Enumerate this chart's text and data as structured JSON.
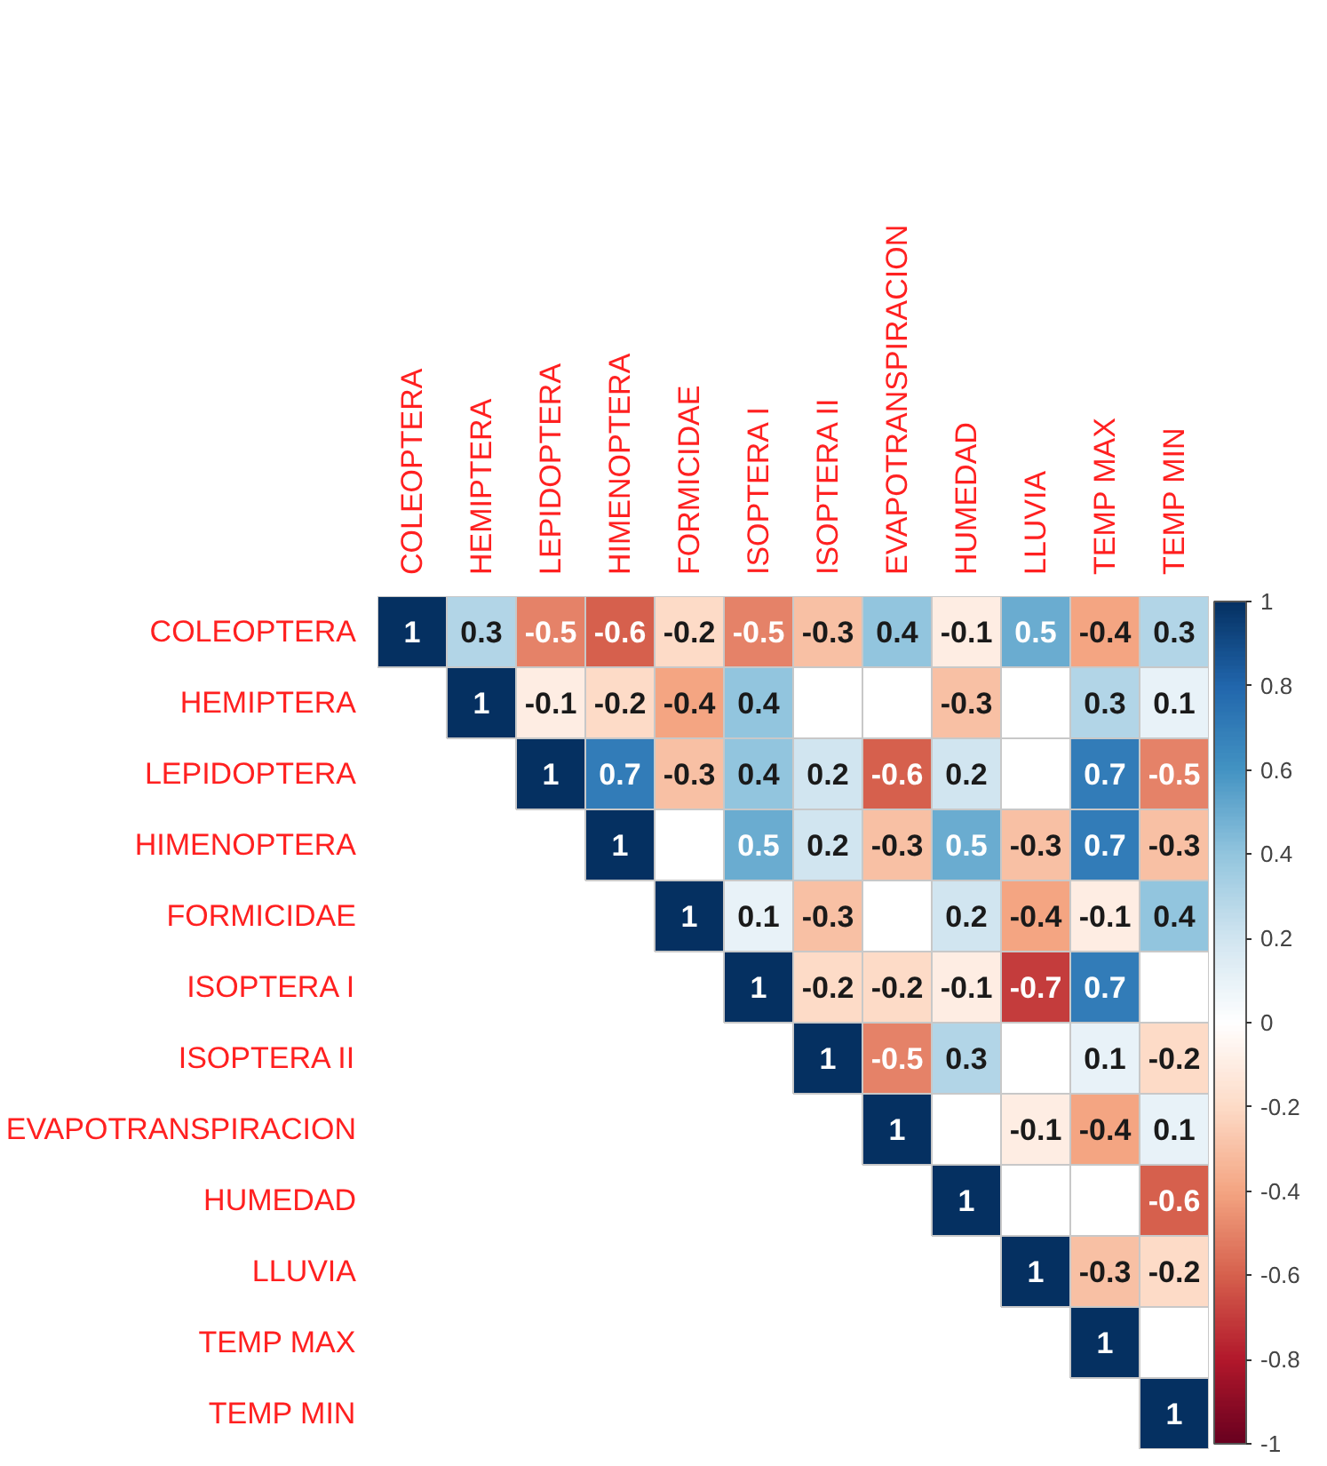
{
  "chart_data": {
    "type": "heatmap",
    "categories": [
      "COLEOPTERA",
      "HEMIPTERA",
      "LEPIDOPTERA",
      "HIMENOPTERA",
      "FORMICIDAE",
      "ISOPTERA I",
      "ISOPTERA II",
      "EVAPOTRANSPIRACION",
      "HUMEDAD",
      "LLUVIA",
      "TEMP MAX",
      "TEMP MIN"
    ],
    "y_categories": [
      "COLEOPTERA",
      "HEMIPTERA",
      "LEPIDOPTERA",
      "HIMENOPTERA",
      "FORMICIDAE",
      "ISOPTERA I",
      "ISOPTERA II",
      "EVAPOTRANSPIRACION",
      "HUMEDAD",
      "LLUVIA",
      "TEMP MAX",
      "TEMP MIN"
    ],
    "cells": [
      [
        1,
        0.3,
        -0.5,
        -0.6,
        -0.2,
        -0.5,
        -0.3,
        0.4,
        -0.1,
        0.5,
        -0.4,
        0.3
      ],
      [
        null,
        1,
        -0.1,
        -0.2,
        -0.4,
        0.4,
        null,
        null,
        -0.3,
        null,
        0.3,
        0.1
      ],
      [
        null,
        null,
        1,
        0.7,
        -0.3,
        0.4,
        0.2,
        -0.6,
        0.2,
        null,
        0.7,
        -0.5
      ],
      [
        null,
        null,
        null,
        1,
        null,
        0.5,
        0.2,
        -0.3,
        0.5,
        -0.3,
        0.7,
        -0.3
      ],
      [
        null,
        null,
        null,
        null,
        1,
        0.1,
        -0.3,
        null,
        0.2,
        -0.4,
        -0.1,
        0.4
      ],
      [
        null,
        null,
        null,
        null,
        null,
        1,
        -0.2,
        -0.2,
        -0.1,
        -0.7,
        0.7,
        null
      ],
      [
        null,
        null,
        null,
        null,
        null,
        null,
        1,
        -0.5,
        0.3,
        null,
        0.1,
        -0.2
      ],
      [
        null,
        null,
        null,
        null,
        null,
        null,
        null,
        1,
        null,
        -0.1,
        -0.4,
        0.1
      ],
      [
        null,
        null,
        null,
        null,
        null,
        null,
        null,
        null,
        1,
        null,
        null,
        -0.6
      ],
      [
        null,
        null,
        null,
        null,
        null,
        null,
        null,
        null,
        null,
        1,
        -0.3,
        -0.2
      ],
      [
        null,
        null,
        null,
        null,
        null,
        null,
        null,
        null,
        null,
        null,
        1,
        null
      ],
      [
        null,
        null,
        null,
        null,
        null,
        null,
        null,
        null,
        null,
        null,
        null,
        1
      ]
    ],
    "data_labels": true,
    "clim": [
      -1,
      1
    ],
    "cticks": [
      -1,
      -0.8,
      -0.6,
      -0.4,
      -0.2,
      0,
      0.2,
      0.4,
      0.6,
      0.8,
      1
    ]
  }
}
